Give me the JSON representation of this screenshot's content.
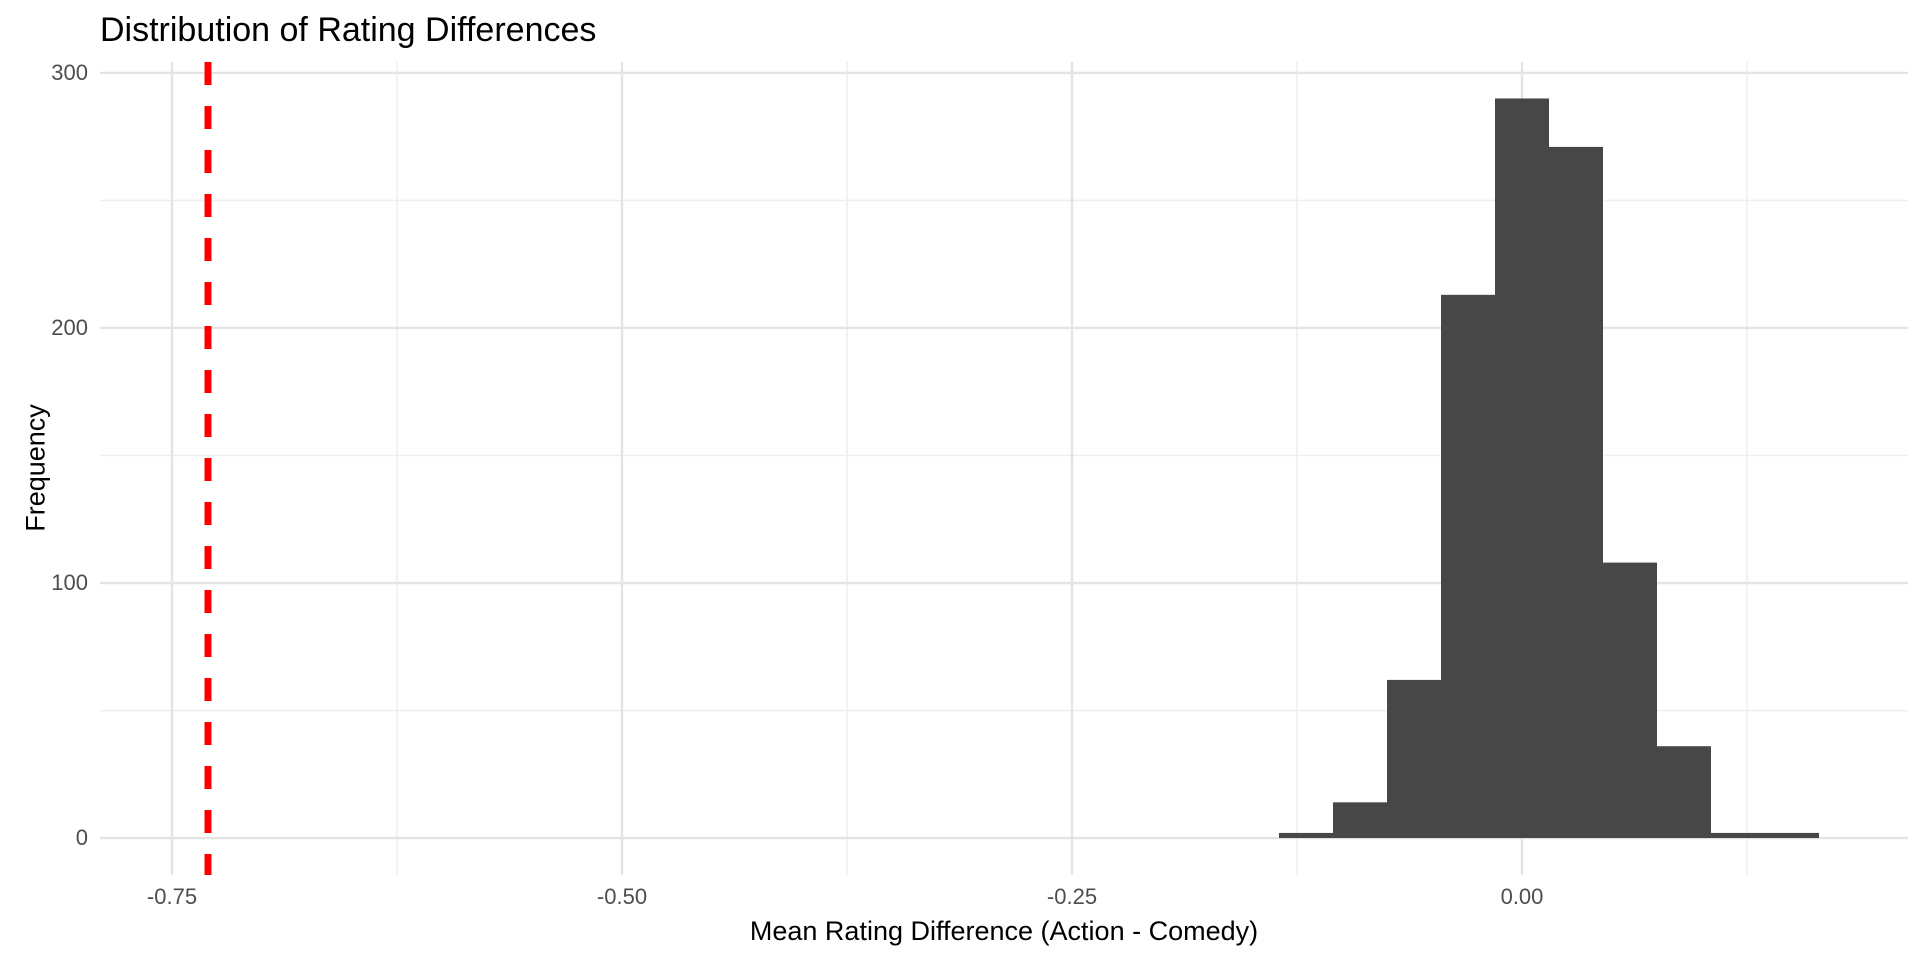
{
  "chart_data": {
    "type": "bar",
    "subtype": "histogram",
    "title": "Distribution of Rating Differences",
    "xlabel": "Mean Rating Difference (Action - Comedy)",
    "ylabel": "Frequency",
    "bin_centers": [
      -0.12,
      -0.09,
      -0.06,
      -0.03,
      0.0,
      0.03,
      0.06,
      0.09,
      0.12,
      0.15
    ],
    "bin_width": 0.03,
    "counts": [
      2,
      14,
      62,
      213,
      290,
      271,
      108,
      36,
      2,
      2
    ],
    "x_ticks": [
      -0.75,
      -0.5,
      -0.25,
      0.0
    ],
    "x_tick_labels": [
      "-0.75",
      "-0.50",
      "-0.25",
      "0.00"
    ],
    "x_minor_ticks": [
      -0.625,
      -0.375,
      -0.125,
      0.125
    ],
    "y_ticks": [
      0,
      100,
      200,
      300
    ],
    "y_tick_labels": [
      "0",
      "100",
      "200",
      "300"
    ],
    "y_minor_ticks": [
      50,
      150,
      250
    ],
    "xlim": [
      -0.79,
      0.21444
    ],
    "ylim": [
      -14.5,
      304.3
    ],
    "vline": {
      "x": -0.73,
      "color": "#FF0000",
      "linetype": "dashed"
    },
    "grid": true,
    "legend": false,
    "colors": {
      "bar_fill": "#474747",
      "grid_major": "#E4E4E4",
      "grid_minor": "#EFEFEF",
      "tick_text": "#4D4D4D",
      "title_text": "#000000",
      "background": "#FFFFFF"
    }
  }
}
